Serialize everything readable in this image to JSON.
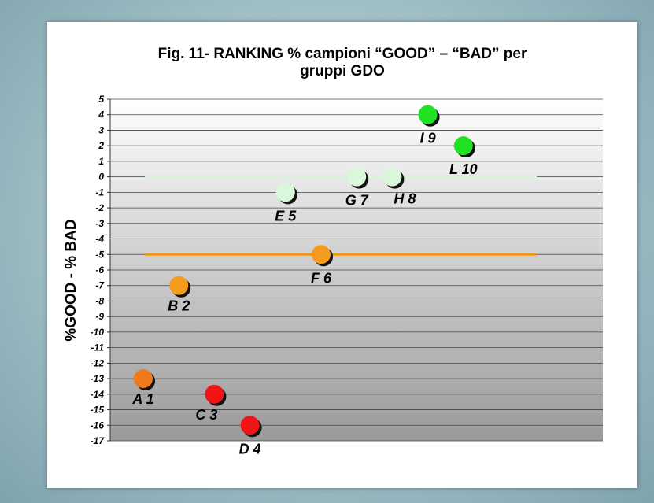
{
  "chart_data": {
    "type": "scatter",
    "title_lines": [
      "Fig. 11- RANKING % campioni “GOOD” – “BAD” per",
      "gruppi GDO"
    ],
    "ylabel": "%GOOD - % BAD",
    "xlabel": "",
    "ylim": [
      -17,
      5
    ],
    "yticks": [
      "5",
      "4",
      "3",
      "2",
      "1",
      "0",
      "-1",
      "-2",
      "-3",
      "-4",
      "-5",
      "-6",
      "-7",
      "-8",
      "-9",
      "-10",
      "-11",
      "-12",
      "-13",
      "-14",
      "-15",
      "-16",
      "-17"
    ],
    "grid": true,
    "legend": "none",
    "reference_lines": [
      {
        "y": 0,
        "color": "#d6f5d6"
      },
      {
        "y": -5,
        "color": "#f0960f"
      }
    ],
    "points": [
      {
        "label": "A 1",
        "x": 1,
        "y": -13,
        "color": "#f07a1a"
      },
      {
        "label": "B 2",
        "x": 2,
        "y": -7,
        "color": "#f59b1e"
      },
      {
        "label": "C 3",
        "x": 3,
        "y": -14,
        "color": "#f01414"
      },
      {
        "label": "D 4",
        "x": 4,
        "y": -16,
        "color": "#f01414"
      },
      {
        "label": "E 5",
        "x": 5,
        "y": -1,
        "color": "#d9f8d9"
      },
      {
        "label": "F 6",
        "x": 6,
        "y": -5,
        "color": "#f59b1e"
      },
      {
        "label": "G 7",
        "x": 7,
        "y": 0,
        "color": "#d9f8d9"
      },
      {
        "label": "H 8",
        "x": 8,
        "y": 0,
        "color": "#d9f8d9"
      },
      {
        "label": "I 9",
        "x": 9,
        "y": 4,
        "color": "#22e022"
      },
      {
        "label": "L 10",
        "x": 10,
        "y": 2,
        "color": "#22e022"
      }
    ]
  }
}
